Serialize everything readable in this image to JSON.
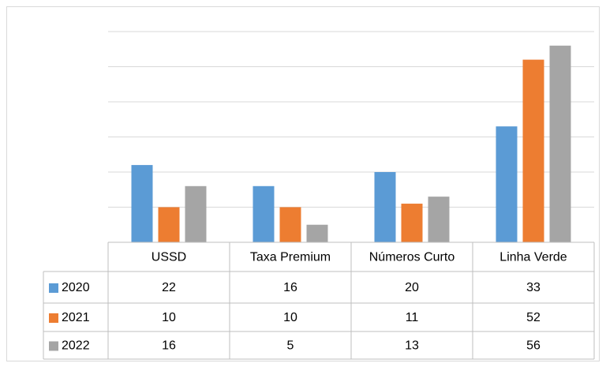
{
  "chart_data": {
    "type": "bar",
    "categories": [
      "USSD",
      "Taxa Premium",
      "Números Curto",
      "Linha Verde"
    ],
    "series": [
      {
        "name": "2020",
        "color": "#5b9bd5",
        "values": [
          22,
          16,
          20,
          33
        ]
      },
      {
        "name": "2021",
        "color": "#ed7d31",
        "values": [
          10,
          10,
          11,
          52
        ]
      },
      {
        "name": "2022",
        "color": "#a5a5a5",
        "values": [
          16,
          5,
          13,
          56
        ]
      }
    ],
    "ylim": [
      0,
      60
    ],
    "yticks": [
      0,
      10,
      20,
      30,
      40,
      50,
      60
    ],
    "grid": true,
    "data_table": true
  }
}
